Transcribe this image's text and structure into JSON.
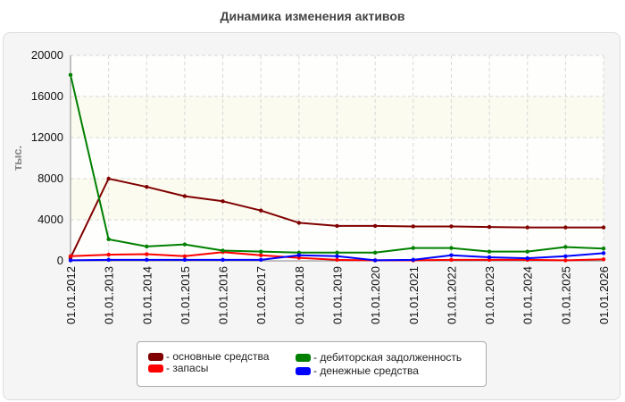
{
  "chart_data": {
    "type": "line",
    "title": "Динамика изменения активов",
    "ylabel": "тыс.",
    "xlabel": "",
    "ylim": [
      0,
      20000
    ],
    "yticks": [
      0,
      4000,
      8000,
      12000,
      16000,
      20000
    ],
    "grid": true,
    "legend_position": "bottom",
    "categories": [
      "01.01.2012",
      "01.01.2013",
      "01.01.2014",
      "01.01.2015",
      "01.01.2016",
      "01.01.2017",
      "01.01.2018",
      "01.01.2019",
      "01.01.2020",
      "01.01.2021",
      "01.01.2022",
      "01.01.2023",
      "01.01.2024",
      "01.01.2025",
      "01.01.2026"
    ],
    "series": [
      {
        "name": "основные средства",
        "color": "#800000",
        "values": [
          300,
          8000,
          7200,
          6300,
          5800,
          4900,
          3700,
          3400,
          3400,
          3350,
          3350,
          3300,
          3250,
          3250,
          3250
        ]
      },
      {
        "name": "запасы",
        "color": "#ff0000",
        "values": [
          450,
          600,
          650,
          450,
          850,
          550,
          300,
          100,
          50,
          50,
          100,
          100,
          100,
          50,
          150
        ]
      },
      {
        "name": "дебиторская задолженность",
        "color": "#008000",
        "values": [
          18100,
          2100,
          1400,
          1600,
          1000,
          900,
          800,
          800,
          800,
          1250,
          1250,
          900,
          900,
          1350,
          1200
        ]
      },
      {
        "name": "денежные средства",
        "color": "#0000ff",
        "values": [
          50,
          100,
          100,
          100,
          100,
          100,
          550,
          450,
          50,
          100,
          550,
          350,
          250,
          450,
          750
        ]
      }
    ]
  }
}
